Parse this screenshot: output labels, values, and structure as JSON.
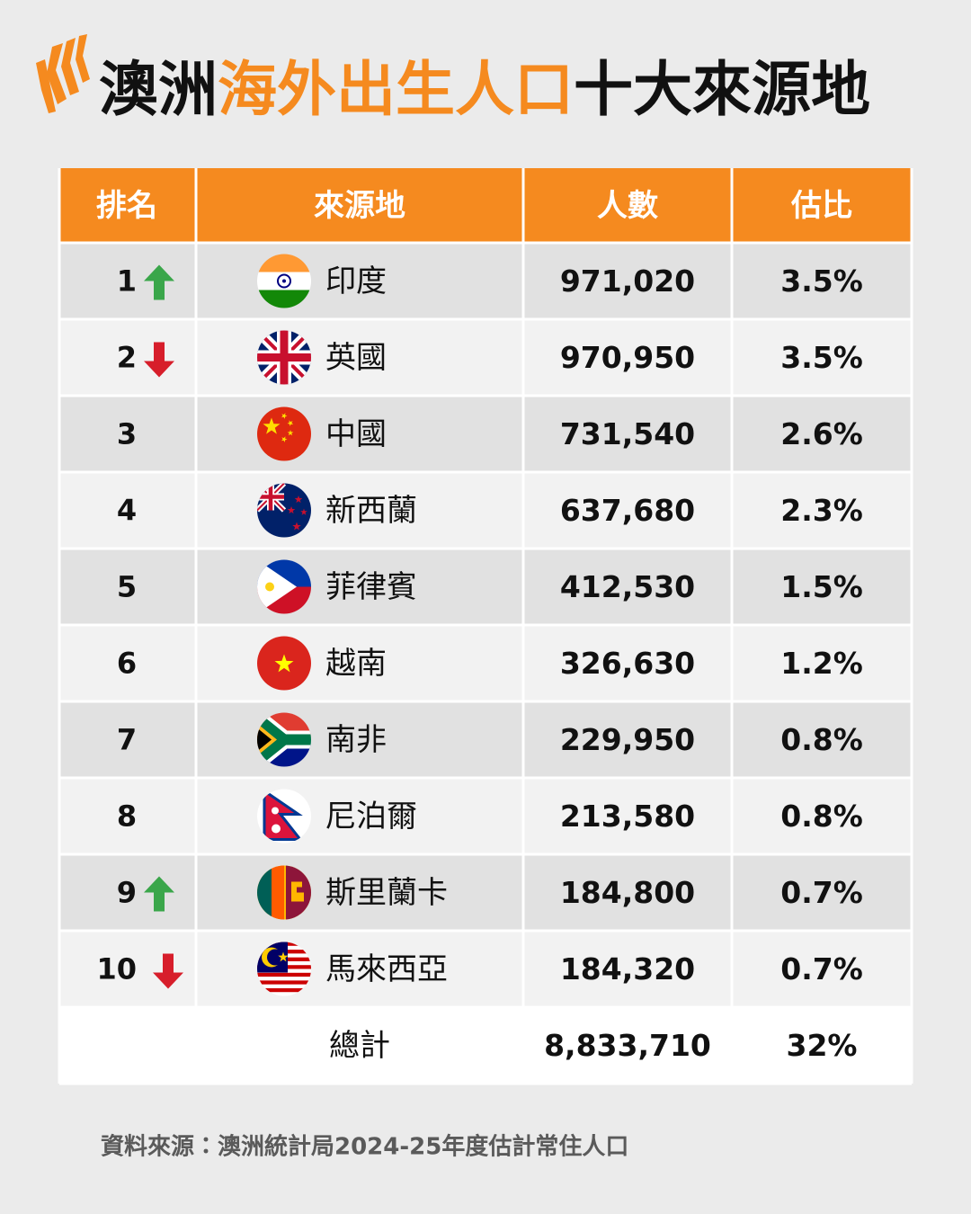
{
  "header": {
    "title": [
      "澳洲",
      "海外出生人口",
      "十大來源地"
    ]
  },
  "table": {
    "columns": [
      "排名",
      "來源地",
      "人數",
      "估比"
    ],
    "rows": [
      [
        "1",
        "印度",
        "971,020",
        "3.5%"
      ],
      [
        "2",
        "英國",
        "970,950",
        "3.5%"
      ],
      [
        "3",
        "中國",
        "731,540",
        "2.6%"
      ],
      [
        "4",
        "新西蘭",
        "637,680",
        "2.3%"
      ],
      [
        "5",
        "菲律賓",
        "412,530",
        "1.5%"
      ],
      [
        "6",
        "越南",
        "326,630",
        "1.2%"
      ],
      [
        "7",
        "南非",
        "229,950",
        "0.8%"
      ],
      [
        "8",
        "尼泊爾",
        "213,580",
        "0.8%"
      ],
      [
        "9",
        "斯里蘭卡",
        "184,800",
        "0.7%"
      ],
      [
        "10",
        "馬來西亞",
        "184,320",
        "0.7%"
      ]
    ],
    "total": [
      "總計",
      "8,833,710",
      "32%"
    ]
  },
  "footer": {
    "source": "資料來源：澳洲統計局2024-25年度估計常住人口"
  }
}
